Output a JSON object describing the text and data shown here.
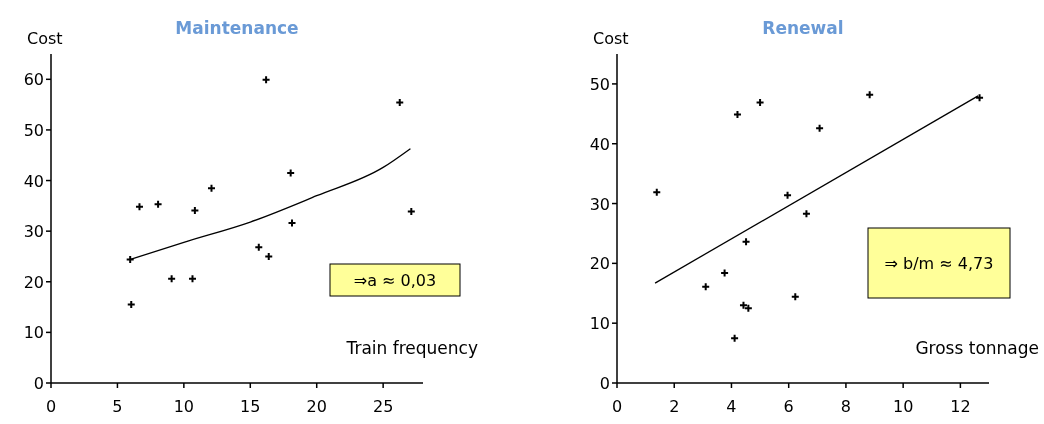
{
  "chart_data": [
    {
      "type": "scatter",
      "title": "Maintenance",
      "xlabel": "Train frequency",
      "ylabel": "Cost",
      "xlim": [
        0,
        28
      ],
      "ylim": [
        0,
        65
      ],
      "xticks": [
        0,
        5,
        10,
        15,
        20,
        25
      ],
      "yticks": [
        0,
        10,
        20,
        30,
        40,
        50,
        60
      ],
      "grid": false,
      "marker": "cross",
      "annotations": [
        "⇒a ≈ 0,03"
      ],
      "series": [
        {
          "type": "scatter",
          "color": "#000000",
          "x": [
            6.04,
            5.96,
            6.66,
            8.06,
            9.08,
            10.65,
            10.83,
            12.08,
            15.64,
            16.39,
            16.19,
            18.04,
            18.14,
            26.25,
            27.12
          ],
          "values": [
            15.5,
            24.4,
            34.8,
            35.3,
            20.6,
            20.6,
            34.1,
            38.5,
            26.8,
            25.0,
            59.9,
            41.5,
            31.6,
            55.4,
            33.9
          ]
        },
        {
          "type": "line",
          "color": "#000000",
          "marker": "none",
          "x": [
            5.96,
            10,
            15,
            20,
            25,
            27.05
          ],
          "values": [
            24.4,
            27.8,
            31.8,
            37.0,
            42.6,
            46.3
          ]
        }
      ]
    },
    {
      "type": "scatter",
      "title": "Renewal",
      "xlabel": "Gross tonnage",
      "ylabel": "Cost",
      "xlim": [
        0,
        13
      ],
      "ylim": [
        0,
        55
      ],
      "xticks": [
        0,
        2,
        4,
        6,
        8,
        10,
        12
      ],
      "yticks": [
        0,
        10,
        20,
        30,
        40,
        50
      ],
      "grid": false,
      "marker": "cross",
      "annotations": [
        "⇒ b/m ≈ 4,73"
      ],
      "series": [
        {
          "type": "scatter",
          "color": "#000000",
          "x": [
            1.39,
            3.1,
            3.76,
            4.21,
            4.11,
            4.42,
            4.59,
            4.51,
            5.0,
            5.96,
            6.23,
            6.62,
            7.08,
            8.83,
            12.67
          ],
          "values": [
            31.9,
            16.1,
            18.4,
            44.9,
            7.5,
            13.0,
            12.5,
            23.6,
            46.9,
            31.4,
            14.4,
            28.3,
            42.6,
            48.2,
            47.7
          ]
        },
        {
          "type": "line",
          "color": "#000000",
          "marker": "none",
          "x": [
            1.33,
            12.62
          ],
          "values": [
            16.7,
            48.0
          ]
        }
      ]
    }
  ]
}
